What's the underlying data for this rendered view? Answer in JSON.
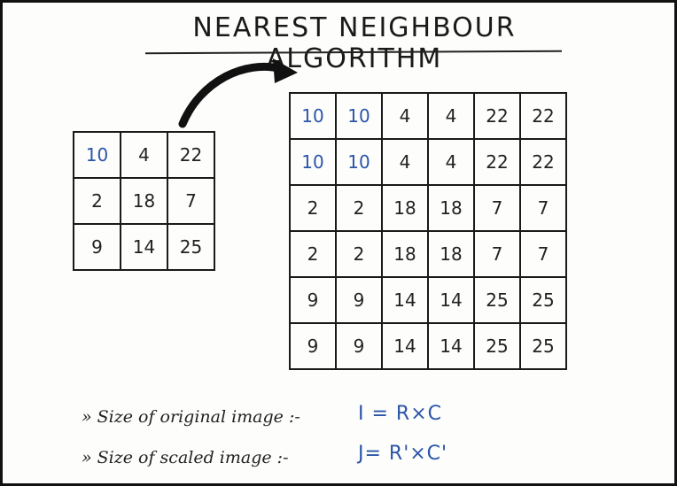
{
  "title": "NEAREST NEIGHBOUR ALGORITHM",
  "original_grid": [
    [
      "10",
      "4",
      "22"
    ],
    [
      "2",
      "18",
      "7"
    ],
    [
      "9",
      "14",
      "25"
    ]
  ],
  "scaled_grid": [
    [
      "10",
      "10",
      "4",
      "4",
      "22",
      "22"
    ],
    [
      "10",
      "10",
      "4",
      "4",
      "22",
      "22"
    ],
    [
      "2",
      "2",
      "18",
      "18",
      "7",
      "7"
    ],
    [
      "2",
      "2",
      "18",
      "18",
      "7",
      "7"
    ],
    [
      "9",
      "9",
      "14",
      "14",
      "25",
      "25"
    ],
    [
      "9",
      "9",
      "14",
      "14",
      "25",
      "25"
    ]
  ],
  "notes": {
    "original": {
      "label": "» Size of original image :-",
      "formula": "I = R×C"
    },
    "scaled": {
      "label": "» Size of scaled image :-",
      "formula": "J= R'×C'"
    }
  },
  "colors": {
    "ink": "#1a1a1a",
    "highlight": "#2b55a8"
  }
}
